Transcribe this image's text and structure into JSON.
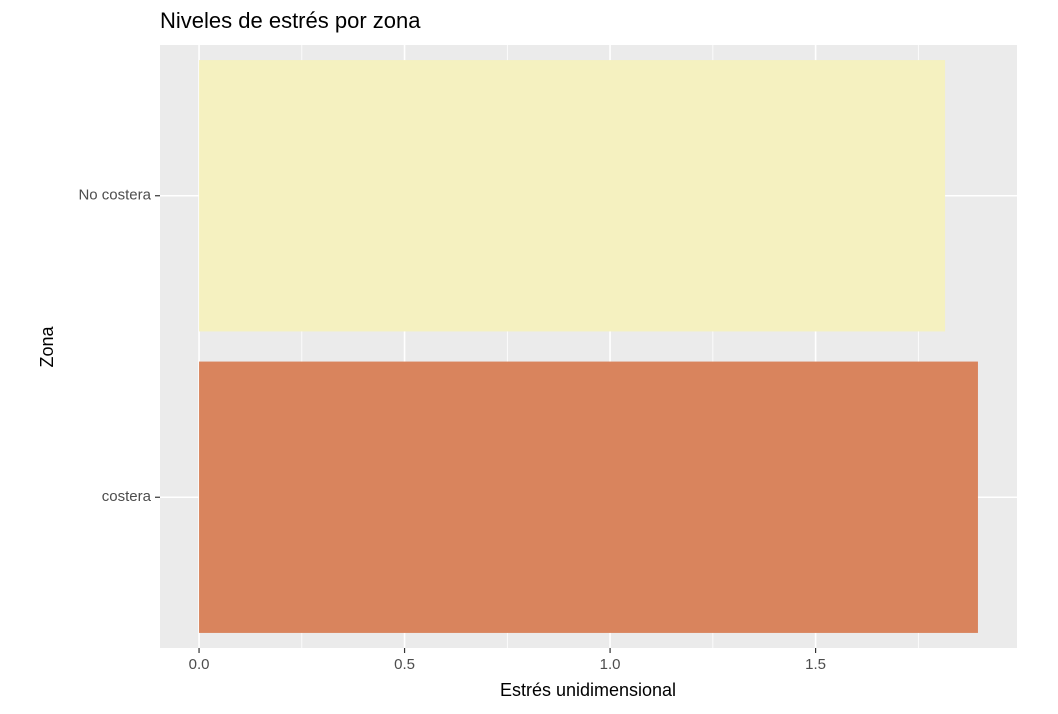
{
  "chart_data": {
    "type": "barh",
    "title": "Niveles de estrés por zona",
    "xlabel": "Estrés unidimensional",
    "ylabel": "Zona",
    "categories": [
      "costera",
      "No costera"
    ],
    "values": [
      1.895,
      1.815
    ],
    "colors": [
      "#d9845d",
      "#f5f1c0"
    ],
    "xlim": [
      -0.095,
      1.99
    ],
    "xticks": [
      {
        "value": 0,
        "label": "0.0"
      },
      0.5,
      {
        "value": 1,
        "label": "1.0"
      },
      1.5
    ],
    "grid": true
  }
}
